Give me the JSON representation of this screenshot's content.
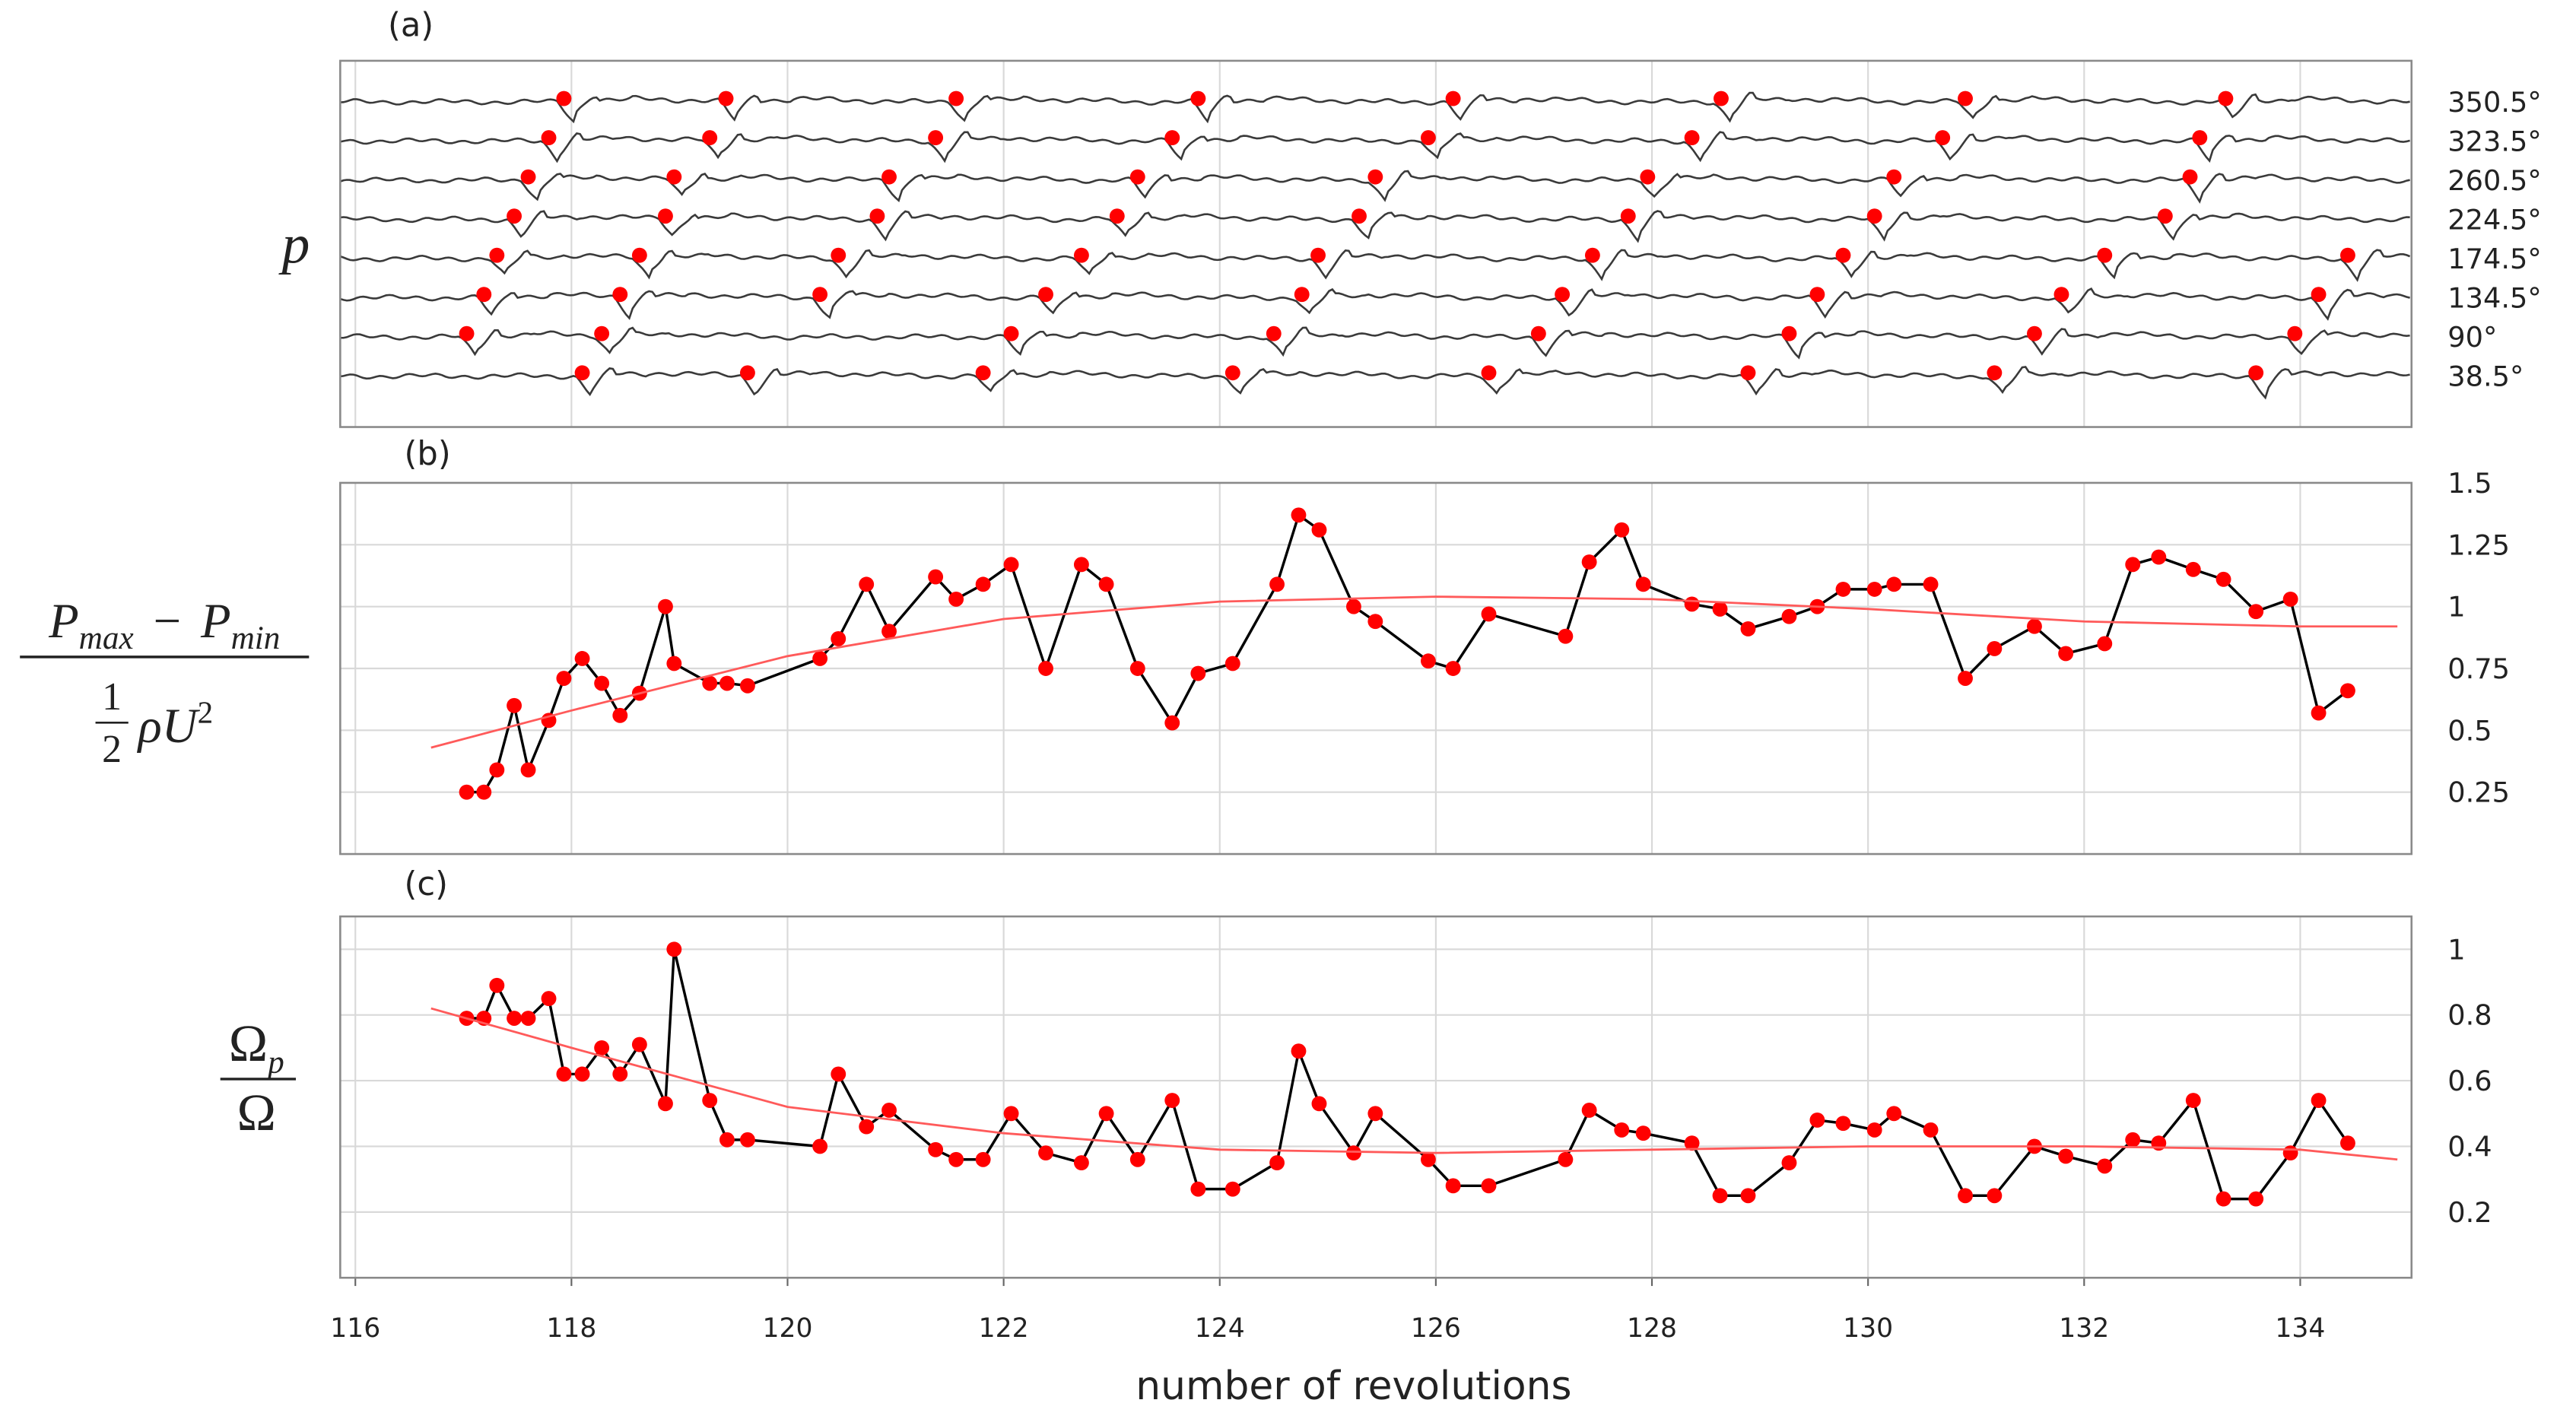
{
  "chart_data": [
    {
      "type": "traces",
      "panel_label": "(a)",
      "ylabel": "p",
      "xlim": [
        115.86,
        135.03
      ],
      "xticks": [
        116,
        118,
        120,
        122,
        124,
        126,
        128,
        130,
        132,
        134
      ],
      "line_color": "#3a3a3a",
      "marker_color": "#ff0000",
      "series": [
        {
          "name": "350.5°",
          "marker_x": [
            117.93,
            119.43,
            121.56,
            123.8,
            126.16,
            128.64,
            130.9,
            133.31
          ]
        },
        {
          "name": "323.5°",
          "marker_x": [
            117.79,
            119.28,
            121.37,
            123.56,
            125.93,
            128.37,
            130.69,
            133.07
          ]
        },
        {
          "name": "260.5°",
          "marker_x": [
            117.6,
            118.95,
            120.94,
            123.24,
            125.44,
            127.96,
            130.24,
            132.98
          ]
        },
        {
          "name": "224.5°",
          "marker_x": [
            117.47,
            118.87,
            120.83,
            123.05,
            125.29,
            127.78,
            130.06,
            132.75
          ]
        },
        {
          "name": "174.5°",
          "marker_x": [
            117.31,
            118.63,
            120.47,
            122.72,
            124.91,
            127.45,
            129.77,
            132.19,
            134.44
          ]
        },
        {
          "name": "134.5°",
          "marker_x": [
            117.19,
            118.45,
            120.3,
            122.39,
            124.76,
            127.17,
            129.53,
            131.79,
            134.17
          ]
        },
        {
          "name": "90°",
          "marker_x": [
            117.03,
            118.28,
            122.07,
            124.5,
            126.95,
            129.27,
            131.54,
            133.95
          ]
        },
        {
          "name": "38.5°",
          "marker_x": [
            118.1,
            119.63,
            121.81,
            124.12,
            126.49,
            128.89,
            131.17,
            133.59
          ]
        }
      ]
    },
    {
      "type": "line",
      "panel_label": "(b)",
      "ylabel": {
        "numerator": [
          "P",
          "max",
          "P",
          "min"
        ],
        "operator": "−",
        "fraction": [
          "1",
          "2"
        ],
        "denominator": "ρU",
        "exponent": "2"
      },
      "xlim": [
        115.86,
        135.03
      ],
      "xticks": [
        116,
        118,
        120,
        122,
        124,
        126,
        128,
        130,
        132,
        134
      ],
      "ylim": [
        0,
        1.5
      ],
      "yticks": [
        0.25,
        0.5,
        0.75,
        1,
        1.25,
        1.5
      ],
      "x": [
        117.03,
        117.19,
        117.31,
        117.47,
        117.6,
        117.79,
        117.93,
        118.1,
        118.28,
        118.45,
        118.63,
        118.87,
        118.95,
        119.28,
        119.44,
        119.63,
        120.3,
        120.47,
        120.73,
        120.94,
        121.37,
        121.56,
        121.81,
        122.07,
        122.39,
        122.72,
        122.95,
        123.24,
        123.56,
        123.8,
        124.12,
        124.53,
        124.73,
        124.92,
        125.24,
        125.44,
        125.93,
        126.16,
        126.49,
        127.2,
        127.42,
        127.72,
        127.92,
        128.37,
        128.63,
        128.89,
        129.27,
        129.53,
        129.77,
        130.06,
        130.24,
        130.58,
        130.9,
        131.17,
        131.54,
        131.83,
        132.19,
        132.45,
        132.69,
        133.01,
        133.29,
        133.59,
        133.91,
        134.17,
        134.44
      ],
      "series": [
        {
          "color": "#000000",
          "marker_color": "#ff0000",
          "values": [
            0.25,
            0.25,
            0.34,
            0.6,
            0.34,
            0.54,
            0.71,
            0.79,
            0.69,
            0.56,
            0.65,
            1.0,
            0.77,
            0.69,
            0.69,
            0.68,
            0.79,
            0.87,
            1.09,
            0.9,
            1.12,
            1.03,
            1.09,
            1.17,
            0.75,
            1.17,
            1.09,
            0.75,
            0.53,
            0.73,
            0.77,
            1.09,
            1.37,
            1.31,
            1.0,
            0.94,
            0.78,
            0.75,
            0.97,
            0.88,
            1.18,
            1.31,
            1.09,
            1.01,
            0.99,
            0.91,
            0.96,
            1.0,
            1.07,
            1.07,
            1.09,
            1.09,
            0.71,
            0.83,
            0.92,
            0.81,
            0.85,
            1.17,
            1.2,
            1.15,
            1.11,
            0.98,
            1.03,
            0.57,
            0.66
          ]
        },
        {
          "color": "#ff5a5a",
          "x": [
            116.7,
            118,
            120,
            122,
            124,
            126,
            128,
            130,
            132,
            134,
            134.9
          ],
          "values": [
            0.43,
            0.58,
            0.8,
            0.95,
            1.02,
            1.04,
            1.03,
            0.99,
            0.94,
            0.92,
            0.92
          ]
        }
      ]
    },
    {
      "type": "line",
      "panel_label": "(c)",
      "ylabel": {
        "numerator": "Ω",
        "subscript": "p",
        "denominator": "Ω"
      },
      "xlabel": "number of revolutions",
      "xlim": [
        115.86,
        135.03
      ],
      "xticks": [
        116,
        118,
        120,
        122,
        124,
        126,
        128,
        130,
        132,
        134
      ],
      "ylim": [
        0,
        1.1
      ],
      "yticks": [
        0.2,
        0.4,
        0.6,
        0.8,
        1
      ],
      "x": [
        117.03,
        117.19,
        117.31,
        117.47,
        117.6,
        117.79,
        117.93,
        118.1,
        118.28,
        118.45,
        118.63,
        118.87,
        118.95,
        119.28,
        119.44,
        119.63,
        120.3,
        120.47,
        120.73,
        120.94,
        121.37,
        121.56,
        121.81,
        122.07,
        122.39,
        122.72,
        122.95,
        123.24,
        123.56,
        123.8,
        124.12,
        124.53,
        124.73,
        124.92,
        125.24,
        125.44,
        125.93,
        126.16,
        126.49,
        127.2,
        127.42,
        127.72,
        127.92,
        128.37,
        128.63,
        128.89,
        129.27,
        129.53,
        129.77,
        130.06,
        130.24,
        130.58,
        130.9,
        131.17,
        131.54,
        131.83,
        132.19,
        132.45,
        132.69,
        133.01,
        133.29,
        133.59,
        133.91,
        134.17,
        134.44
      ],
      "series": [
        {
          "color": "#000000",
          "marker_color": "#ff0000",
          "values": [
            0.79,
            0.79,
            0.89,
            0.79,
            0.79,
            0.85,
            0.62,
            0.62,
            0.7,
            0.62,
            0.71,
            0.53,
            1.0,
            0.54,
            0.42,
            0.42,
            0.4,
            0.62,
            0.46,
            0.51,
            0.39,
            0.36,
            0.36,
            0.5,
            0.38,
            0.35,
            0.5,
            0.36,
            0.54,
            0.27,
            0.27,
            0.35,
            0.69,
            0.53,
            0.38,
            0.5,
            0.36,
            0.28,
            0.28,
            0.36,
            0.51,
            0.45,
            0.44,
            0.41,
            0.25,
            0.25,
            0.35,
            0.48,
            0.47,
            0.45,
            0.5,
            0.45,
            0.25,
            0.25,
            0.4,
            0.37,
            0.34,
            0.42,
            0.41,
            0.54,
            0.24,
            0.24,
            0.38,
            0.54,
            0.41
          ]
        },
        {
          "color": "#ff5a5a",
          "x": [
            116.7,
            118,
            120,
            122,
            124,
            126,
            128,
            130,
            132,
            134,
            134.9
          ],
          "values": [
            0.82,
            0.7,
            0.52,
            0.44,
            0.39,
            0.38,
            0.39,
            0.4,
            0.4,
            0.39,
            0.36
          ]
        }
      ]
    }
  ]
}
